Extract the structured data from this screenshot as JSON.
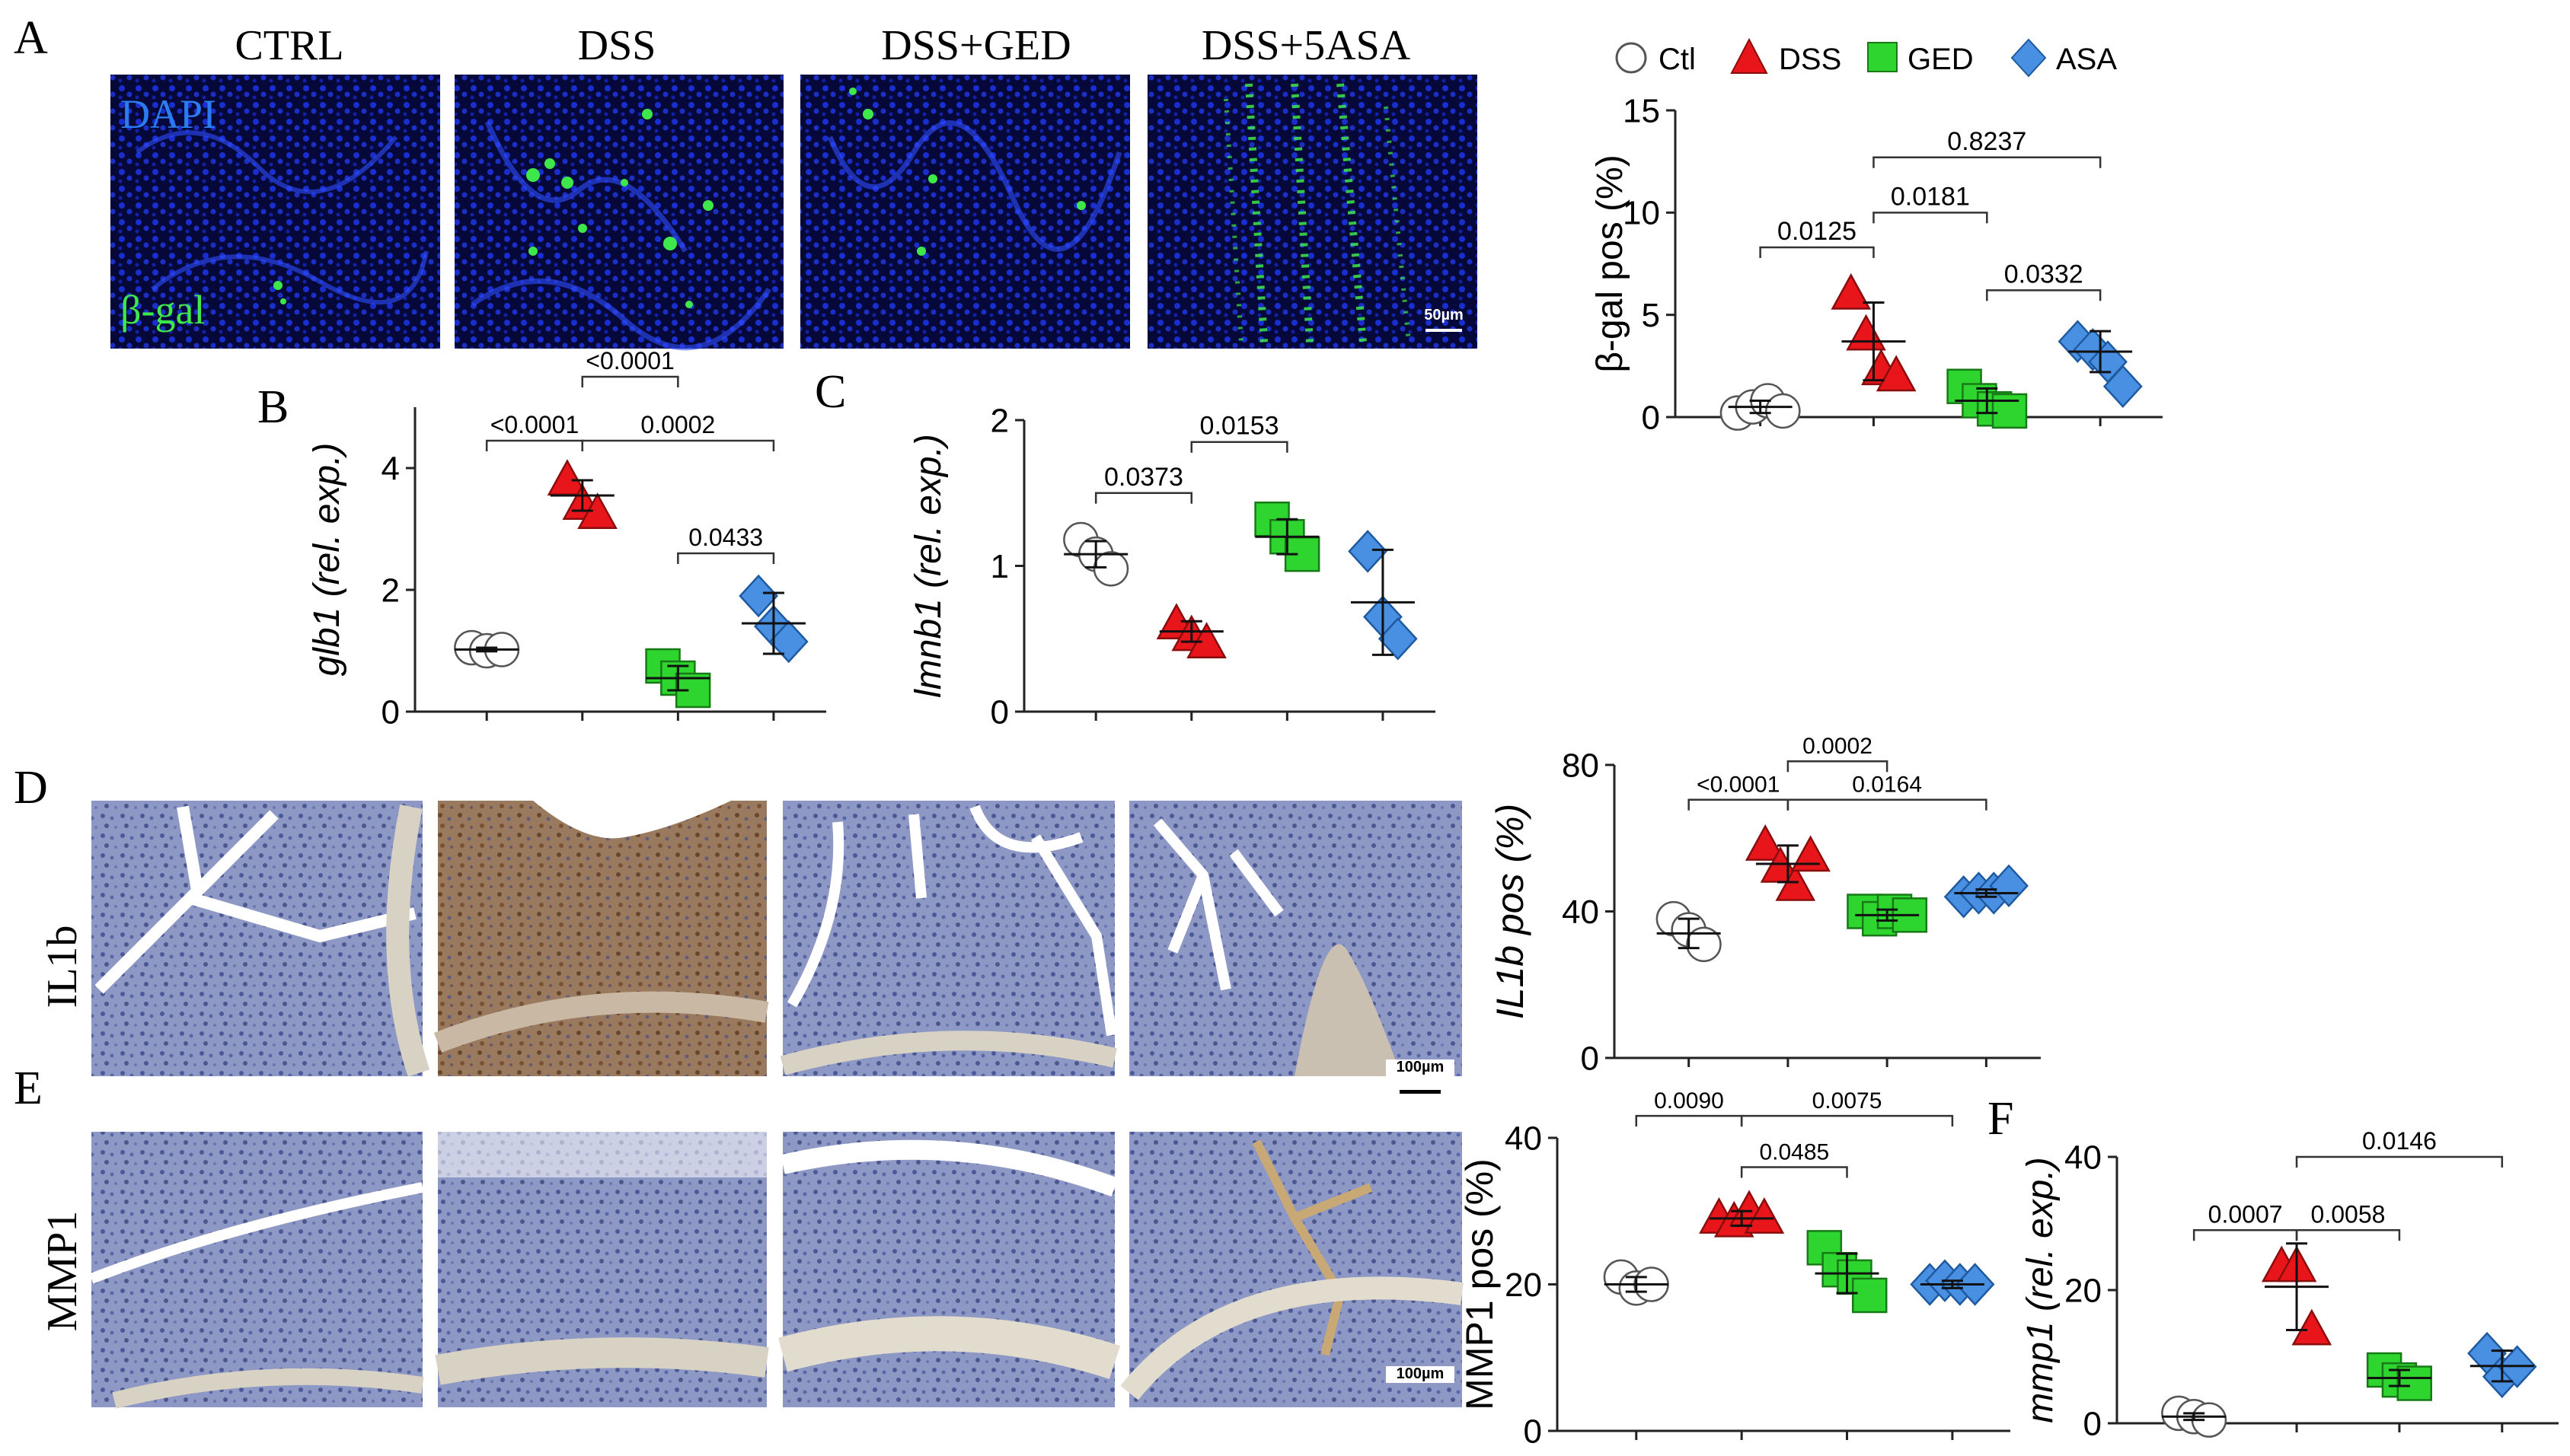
{
  "figure": {
    "panel_letters": [
      "A",
      "B",
      "C",
      "D",
      "E",
      "F"
    ],
    "panel_a": {
      "column_titles": [
        "CTRL",
        "DSS",
        "DSS+GED",
        "DSS+5ASA"
      ],
      "stain_labels": [
        "DAPI",
        "β-gal"
      ],
      "scale_bar": "50µm"
    },
    "panel_d": {
      "row_label": "IL1b",
      "scale_bar": "100µm"
    },
    "panel_e": {
      "row_label": "MMP1",
      "scale_bar": "100µm"
    },
    "legend": [
      {
        "label": "Ctl",
        "marker": "circle",
        "color": "#ffffff"
      },
      {
        "label": "DSS",
        "marker": "triangle",
        "color": "#e8161b"
      },
      {
        "label": "GED",
        "marker": "square",
        "color": "#2fd52f"
      },
      {
        "label": "ASA",
        "marker": "diamond",
        "color": "#4a90e2"
      }
    ],
    "colors": {
      "dapi": "#1a2fe0",
      "bgal": "#3ee84a",
      "ihc_blue": "#5a68a8",
      "ihc_brown": "#8a5a32"
    }
  },
  "chart_data": [
    {
      "id": "bgal",
      "type": "scatter",
      "ylabel": "β-gal pos (%)",
      "ylim": [
        0,
        15
      ],
      "yticks": [
        0,
        5,
        10,
        15
      ],
      "categories": [
        "Ctl",
        "DSS",
        "GED",
        "ASA"
      ],
      "groups": [
        {
          "name": "Ctl",
          "values": [
            0.2,
            0.5,
            0.8,
            0.3
          ],
          "mean": 0.5,
          "sd": 0.3
        },
        {
          "name": "DSS",
          "values": [
            6.0,
            4.0,
            2.3,
            2.0
          ],
          "mean": 3.7,
          "sd": 1.9
        },
        {
          "name": "GED",
          "values": [
            1.5,
            0.8,
            0.4,
            0.3
          ],
          "mean": 0.8,
          "sd": 0.6
        },
        {
          "name": "ASA",
          "values": [
            3.7,
            3.3,
            2.7,
            1.5
          ],
          "mean": 3.2,
          "sd": 1.0
        }
      ],
      "brackets": [
        {
          "from": 0,
          "to": 1,
          "y": 8.3,
          "label": "0.0125"
        },
        {
          "from": 1,
          "to": 2,
          "y": 10.0,
          "label": "0.0181"
        },
        {
          "from": 1,
          "to": 3,
          "y": 12.7,
          "label": "0.8237"
        },
        {
          "from": 2,
          "to": 3,
          "y": 6.2,
          "label": "0.0332"
        }
      ]
    },
    {
      "id": "glb1",
      "type": "scatter",
      "ylabel": "glb1 (rel. exp.)",
      "ylim": [
        0,
        5
      ],
      "yticks": [
        0,
        2,
        4
      ],
      "categories": [
        "Ctl",
        "DSS",
        "GED",
        "ASA"
      ],
      "groups": [
        {
          "name": "Ctl",
          "values": [
            1.05,
            1.0,
            1.02
          ],
          "mean": 1.02,
          "sd": 0.03
        },
        {
          "name": "DSS",
          "values": [
            3.8,
            3.4,
            3.25
          ],
          "mean": 3.55,
          "sd": 0.25
        },
        {
          "name": "GED",
          "values": [
            0.75,
            0.55,
            0.35
          ],
          "mean": 0.55,
          "sd": 0.2
        },
        {
          "name": "ASA",
          "values": [
            1.9,
            1.4,
            1.15
          ],
          "mean": 1.45,
          "sd": 0.5
        }
      ],
      "brackets": [
        {
          "from": 0,
          "to": 1,
          "y": 4.45,
          "label": "<0.0001"
        },
        {
          "from": 1,
          "to": 3,
          "y": 4.45,
          "label": "0.0002"
        },
        {
          "from": 1,
          "to": 2,
          "y": 5.5,
          "label": "<0.0001"
        },
        {
          "from": 2,
          "to": 3,
          "y": 2.6,
          "label": "0.0433"
        }
      ]
    },
    {
      "id": "lmnb1",
      "type": "scatter",
      "ylabel": "lmnb1 (rel. exp.)",
      "ylim": [
        0,
        2
      ],
      "yticks": [
        0,
        1,
        2
      ],
      "categories": [
        "Ctl",
        "DSS",
        "GED",
        "ASA"
      ],
      "groups": [
        {
          "name": "Ctl",
          "values": [
            1.18,
            1.08,
            0.98
          ],
          "mean": 1.08,
          "sd": 0.09
        },
        {
          "name": "DSS",
          "values": [
            0.6,
            0.52,
            0.47
          ],
          "mean": 0.55,
          "sd": 0.07
        },
        {
          "name": "GED",
          "values": [
            1.32,
            1.2,
            1.08
          ],
          "mean": 1.2,
          "sd": 0.12
        },
        {
          "name": "ASA",
          "values": [
            1.1,
            0.65,
            0.5
          ],
          "mean": 0.75,
          "sd": 0.36
        }
      ],
      "brackets": [
        {
          "from": 0,
          "to": 1,
          "y": 1.5,
          "label": "0.0373"
        },
        {
          "from": 1,
          "to": 2,
          "y": 1.85,
          "label": "0.0153"
        }
      ]
    },
    {
      "id": "il1b",
      "type": "scatter",
      "ylabel": "IL1b pos (%)",
      "ylim": [
        0,
        80
      ],
      "yticks": [
        0,
        40,
        80
      ],
      "categories": [
        "Ctl",
        "DSS",
        "GED",
        "ASA"
      ],
      "groups": [
        {
          "name": "Ctl",
          "values": [
            38,
            35,
            31
          ],
          "mean": 34,
          "sd": 4
        },
        {
          "name": "DSS",
          "values": [
            58,
            52,
            47,
            55
          ],
          "mean": 53,
          "sd": 5
        },
        {
          "name": "GED",
          "values": [
            40,
            38,
            40,
            39
          ],
          "mean": 39,
          "sd": 1.5
        },
        {
          "name": "ASA",
          "values": [
            44,
            45,
            45,
            47
          ],
          "mean": 45,
          "sd": 1
        }
      ],
      "brackets": [
        {
          "from": 0,
          "to": 1,
          "y": 70.5,
          "label": "<0.0001"
        },
        {
          "from": 1,
          "to": 2,
          "y": 81,
          "label": "0.0002"
        },
        {
          "from": 1,
          "to": 3,
          "y": 70.5,
          "label": "0.0164"
        }
      ]
    },
    {
      "id": "mmp1pos",
      "type": "scatter",
      "ylabel": "MMP1 pos (%)",
      "ylim": [
        0,
        40
      ],
      "yticks": [
        0,
        20,
        40
      ],
      "categories": [
        "Ctl",
        "DSS",
        "GED",
        "ASA"
      ],
      "groups": [
        {
          "name": "Ctl",
          "values": [
            21,
            19.5,
            20
          ],
          "mean": 20,
          "sd": 1
        },
        {
          "name": "DSS",
          "values": [
            29,
            28.5,
            30,
            29
          ],
          "mean": 29,
          "sd": 1
        },
        {
          "name": "GED",
          "values": [
            25,
            22,
            21,
            18.5
          ],
          "mean": 21.5,
          "sd": 2.7
        },
        {
          "name": "ASA",
          "values": [
            20,
            20.5,
            20,
            20
          ],
          "mean": 20,
          "sd": 0.5
        }
      ],
      "brackets": [
        {
          "from": 0,
          "to": 1,
          "y": 43,
          "label": "0.0090"
        },
        {
          "from": 1,
          "to": 3,
          "y": 43,
          "label": "0.0075"
        },
        {
          "from": 1,
          "to": 2,
          "y": 36,
          "label": "0.0485"
        }
      ]
    },
    {
      "id": "mmp1rel",
      "type": "scatter",
      "ylabel": "mmp1 (rel. exp.)",
      "ylim": [
        0,
        40
      ],
      "yticks": [
        0,
        20,
        40
      ],
      "categories": [
        "Ctl",
        "DSS",
        "GED",
        "ASA"
      ],
      "groups": [
        {
          "name": "Ctl",
          "values": [
            1.5,
            1.0,
            0.5
          ],
          "mean": 1.0,
          "sd": 0.5
        },
        {
          "name": "DSS",
          "values": [
            23.5,
            23.5,
            14
          ],
          "mean": 20.5,
          "sd": 6.5
        },
        {
          "name": "GED",
          "values": [
            8,
            6.5,
            6
          ],
          "mean": 6.8,
          "sd": 1.2
        },
        {
          "name": "ASA",
          "values": [
            10.5,
            7,
            8.5
          ],
          "mean": 8.6,
          "sd": 2.3
        }
      ],
      "brackets": [
        {
          "from": 0,
          "to": 1,
          "y": 29,
          "label": "0.0007"
        },
        {
          "from": 1,
          "to": 2,
          "y": 29,
          "label": "0.0058"
        },
        {
          "from": 1,
          "to": 3,
          "y": 40,
          "label": "0.0146"
        }
      ]
    }
  ]
}
